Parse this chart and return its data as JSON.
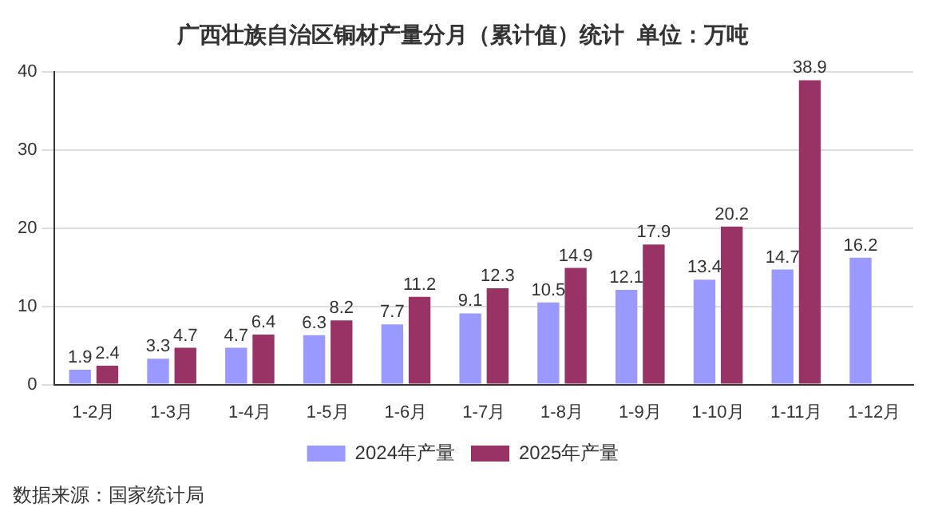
{
  "chart_data": {
    "type": "bar",
    "title": "广西壮族自治区铜材产量分月（累计值）统计  单位：万吨",
    "categories": [
      "1-2月",
      "1-3月",
      "1-4月",
      "1-5月",
      "1-6月",
      "1-7月",
      "1-8月",
      "1-9月",
      "1-10月",
      "1-11月",
      "1-12月"
    ],
    "series": [
      {
        "name": "2024年产量",
        "color": "#9999ff",
        "values": [
          1.9,
          3.3,
          4.7,
          6.3,
          7.7,
          9.1,
          10.5,
          12.1,
          13.4,
          14.7,
          16.2
        ]
      },
      {
        "name": "2025年产量",
        "color": "#993366",
        "values": [
          2.4,
          4.7,
          6.4,
          8.2,
          11.2,
          12.3,
          14.9,
          17.9,
          20.2,
          38.9,
          null
        ]
      }
    ],
    "ylim": [
      0,
      40
    ],
    "yticks": [
      0,
      10,
      20,
      30,
      40
    ],
    "grid": "y",
    "legend": "bottom",
    "data_labels": true,
    "annotations": [
      "数据来源：国家统计局"
    ]
  }
}
